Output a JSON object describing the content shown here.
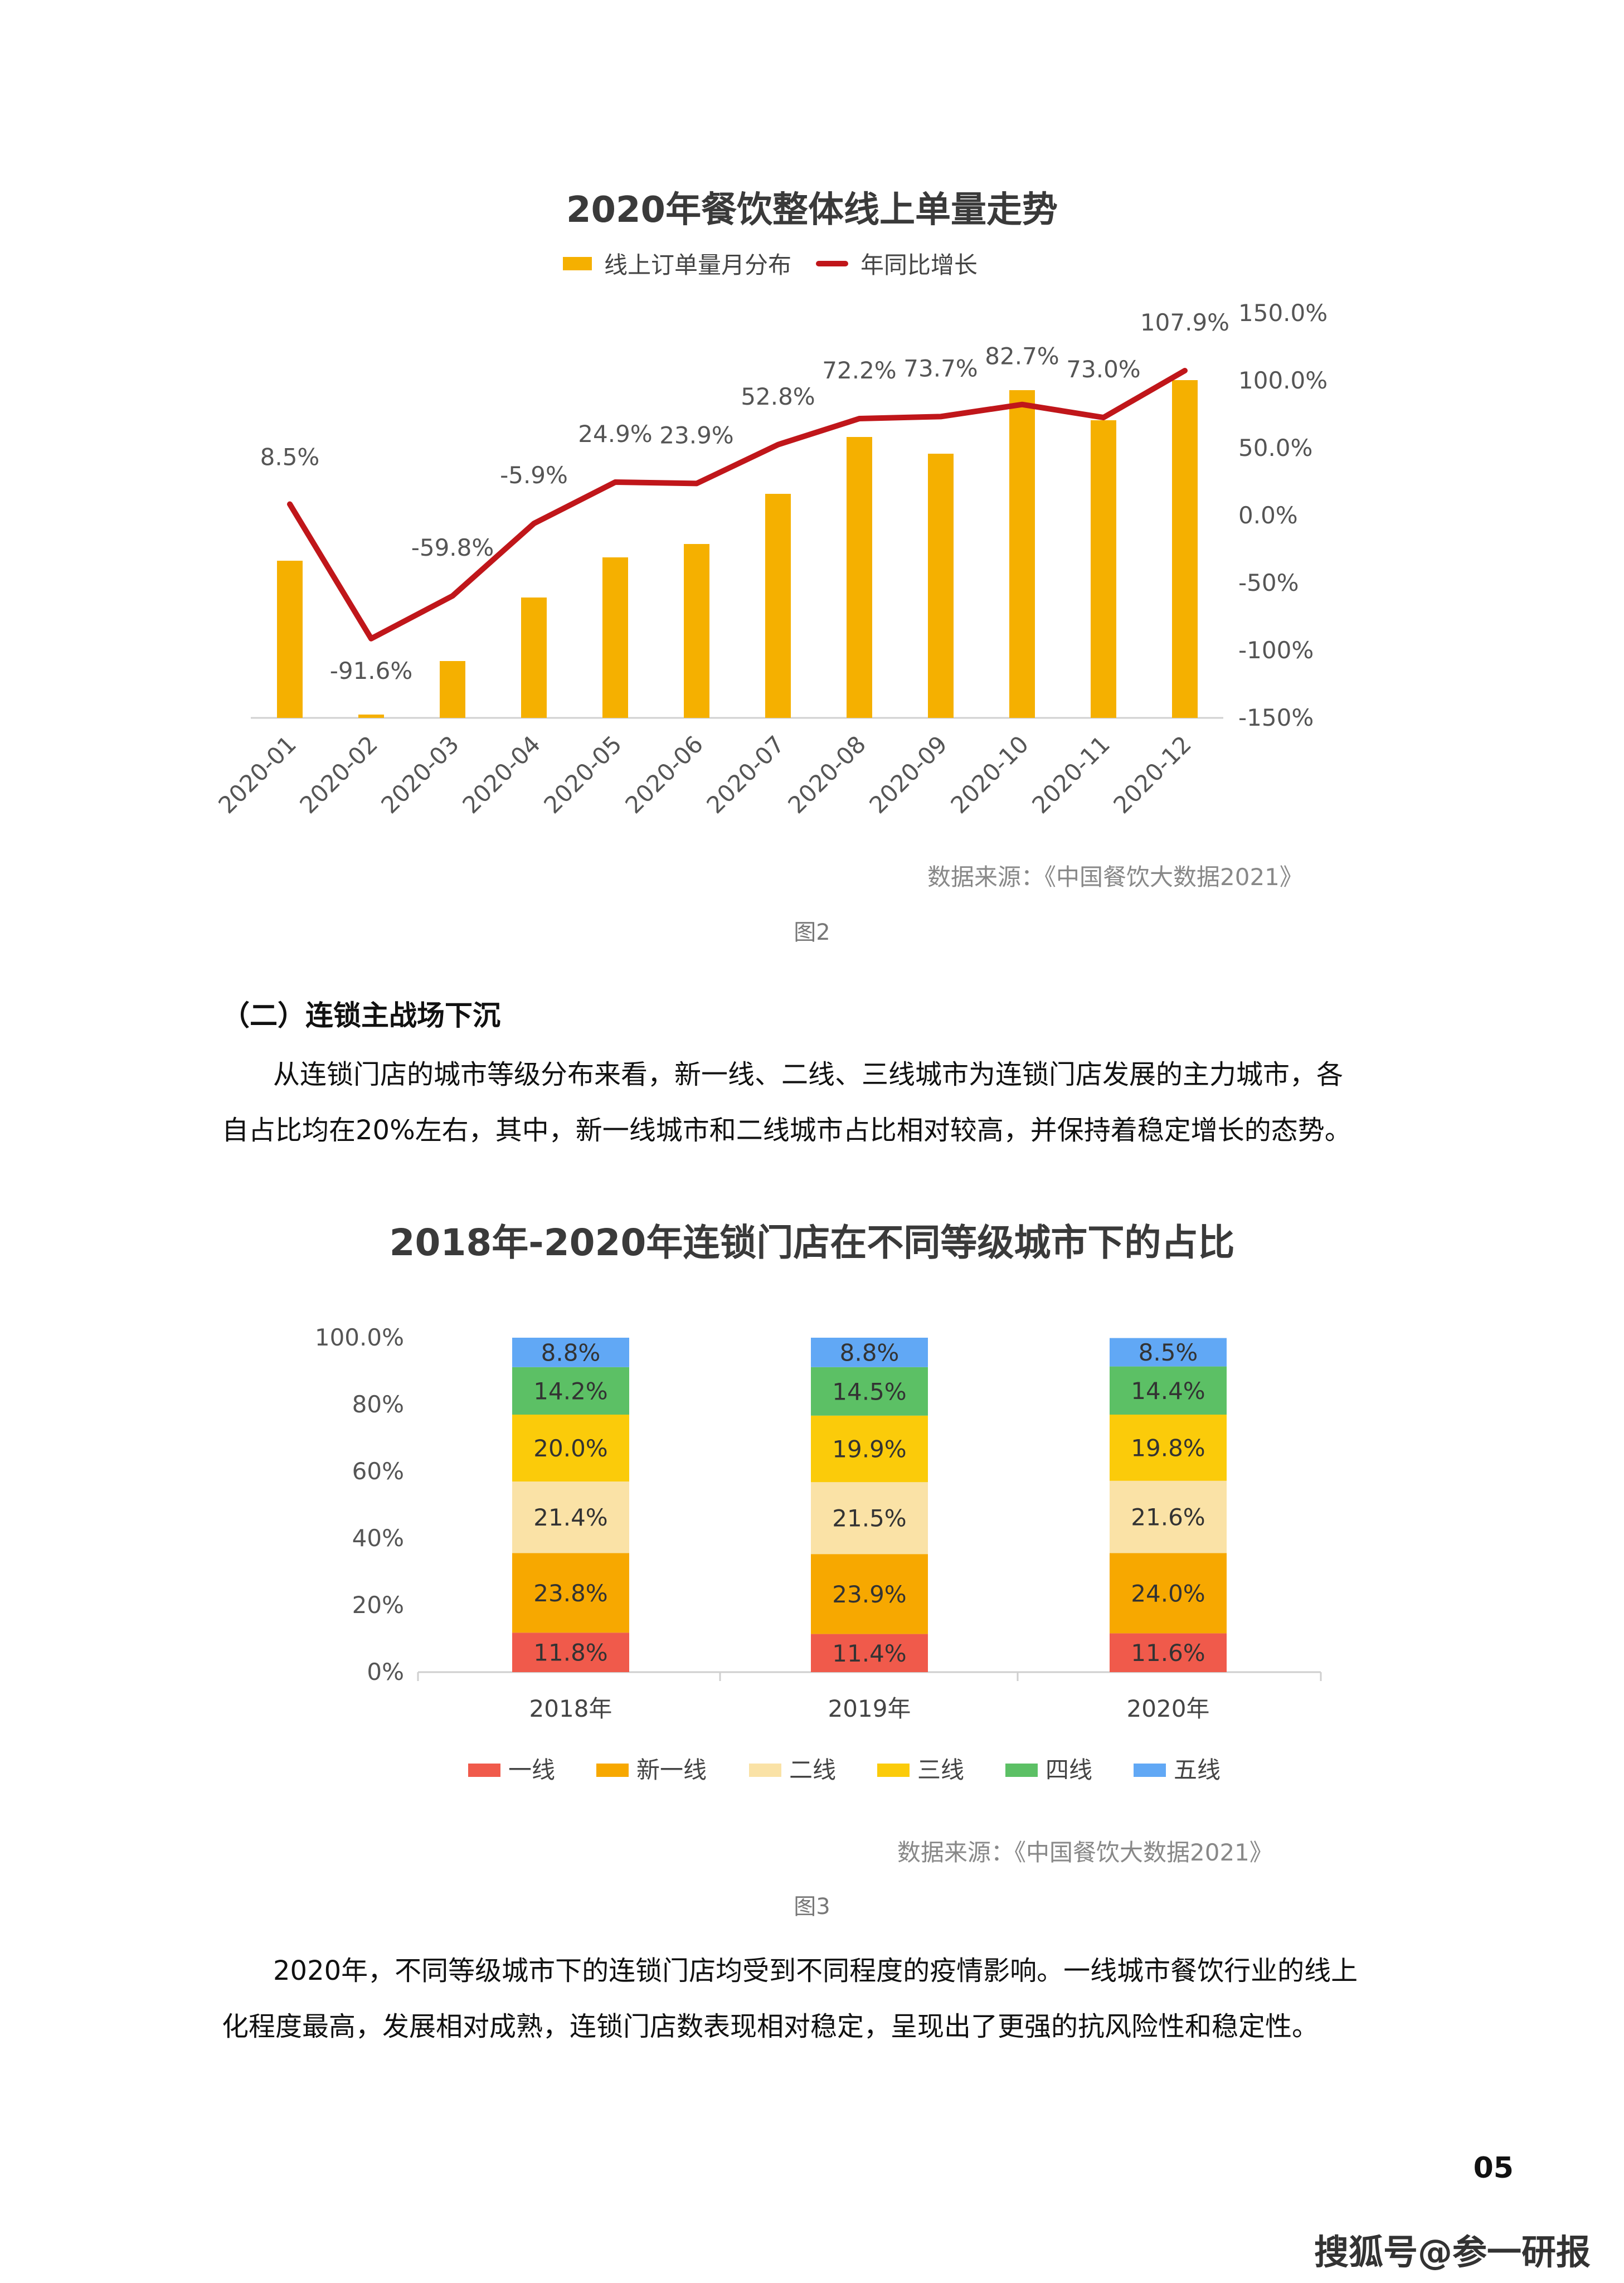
{
  "chart1": {
    "title": "2020年餐饮整体线上单量走势",
    "legend_bar": "线上订单量月分布",
    "legend_line": "年同比增长",
    "source": "数据来源：《中国餐饮大数据2021》",
    "figure_label": "图2",
    "colors": {
      "bar": "#F5B000",
      "line": "#C0161A"
    },
    "right_ticks": [
      "150.0%",
      "100.0%",
      "50.0%",
      "0.0%",
      "-50%",
      "-100%",
      "-150%"
    ]
  },
  "section": {
    "heading": "（二）连锁主战场下沉",
    "para1_line1": "从连锁门店的城市等级分布来看，新一线、二线、三线城市为连锁门店发展的主力城市，各",
    "para1_line2": "自占比均在20%左右，其中，新一线城市和二线城市占比相对较高，并保持着稳定增长的态势。"
  },
  "chart2": {
    "title": "2018年-2020年连锁门店在不同等级城市下的占比",
    "source": "数据来源：《中国餐饮大数据2021》",
    "figure_label": "图3",
    "y_ticks": [
      "100.0%",
      "80%",
      "60%",
      "40%",
      "20%",
      "0%"
    ]
  },
  "closing": {
    "line1": "2020年，不同等级城市下的连锁门店均受到不同程度的疫情影响。一线城市餐饮行业的线上",
    "line2": "化程度最高，发展相对成熟，连锁门店数表现相对稳定，呈现出了更强的抗风险性和稳定性。"
  },
  "page_number": "05",
  "watermark": "搜狐号@参一研报",
  "chart_data": [
    {
      "type": "bar",
      "title": "2020年餐饮整体线上单量走势",
      "categories": [
        "2020-01",
        "2020-02",
        "2020-03",
        "2020-04",
        "2020-05",
        "2020-06",
        "2020-07",
        "2020-08",
        "2020-09",
        "2020-10",
        "2020-11",
        "2020-12"
      ],
      "series": [
        {
          "name": "线上订单量月分布",
          "type": "bar",
          "axis": "left",
          "values": [
            47,
            1,
            17,
            36,
            48,
            52,
            67,
            84,
            79,
            98,
            89,
            101
          ]
        },
        {
          "name": "年同比增长",
          "type": "line",
          "axis": "right",
          "values": [
            8.5,
            -91.6,
            -59.8,
            -5.9,
            24.9,
            23.9,
            52.8,
            72.2,
            73.7,
            82.7,
            73.0,
            107.9
          ],
          "labels": [
            "8.5%",
            "-91.6%",
            "-59.8%",
            "-5.9%",
            "24.9%",
            "23.9%",
            "52.8%",
            "72.2%",
            "73.7%",
            "82.7%",
            "73.0%",
            "107.9%"
          ]
        }
      ],
      "y2lim": [
        -150,
        150
      ]
    },
    {
      "type": "bar",
      "stacked": true,
      "title": "2018年-2020年连锁门店在不同等级城市下的占比",
      "categories": [
        "2018年",
        "2019年",
        "2020年"
      ],
      "ylim": [
        0,
        100
      ],
      "series": [
        {
          "name": "一线",
          "color": "#F05A4B",
          "values": [
            11.8,
            11.4,
            11.6
          ],
          "labels": [
            "11.8%",
            "11.4%",
            "11.6%"
          ]
        },
        {
          "name": "新一线",
          "color": "#F7A800",
          "values": [
            23.8,
            23.9,
            24.0
          ],
          "labels": [
            "23.8%",
            "23.9%",
            "24.0%"
          ]
        },
        {
          "name": "二线",
          "color": "#FAE2A6",
          "values": [
            21.4,
            21.5,
            21.6
          ],
          "labels": [
            "21.4%",
            "21.5%",
            "21.6%"
          ]
        },
        {
          "name": "三线",
          "color": "#FBCB0A",
          "values": [
            20.0,
            19.9,
            19.8
          ],
          "labels": [
            "20.0%",
            "19.9%",
            "19.8%"
          ]
        },
        {
          "name": "四线",
          "color": "#5CC065",
          "values": [
            14.2,
            14.5,
            14.4
          ],
          "labels": [
            "14.2%",
            "14.5%",
            "14.4%"
          ]
        },
        {
          "name": "五线",
          "color": "#61A8F5",
          "values": [
            8.8,
            8.8,
            8.5
          ],
          "labels": [
            "8.8%",
            "8.8%",
            "8.5%"
          ]
        }
      ],
      "legend_position": "bottom"
    }
  ]
}
